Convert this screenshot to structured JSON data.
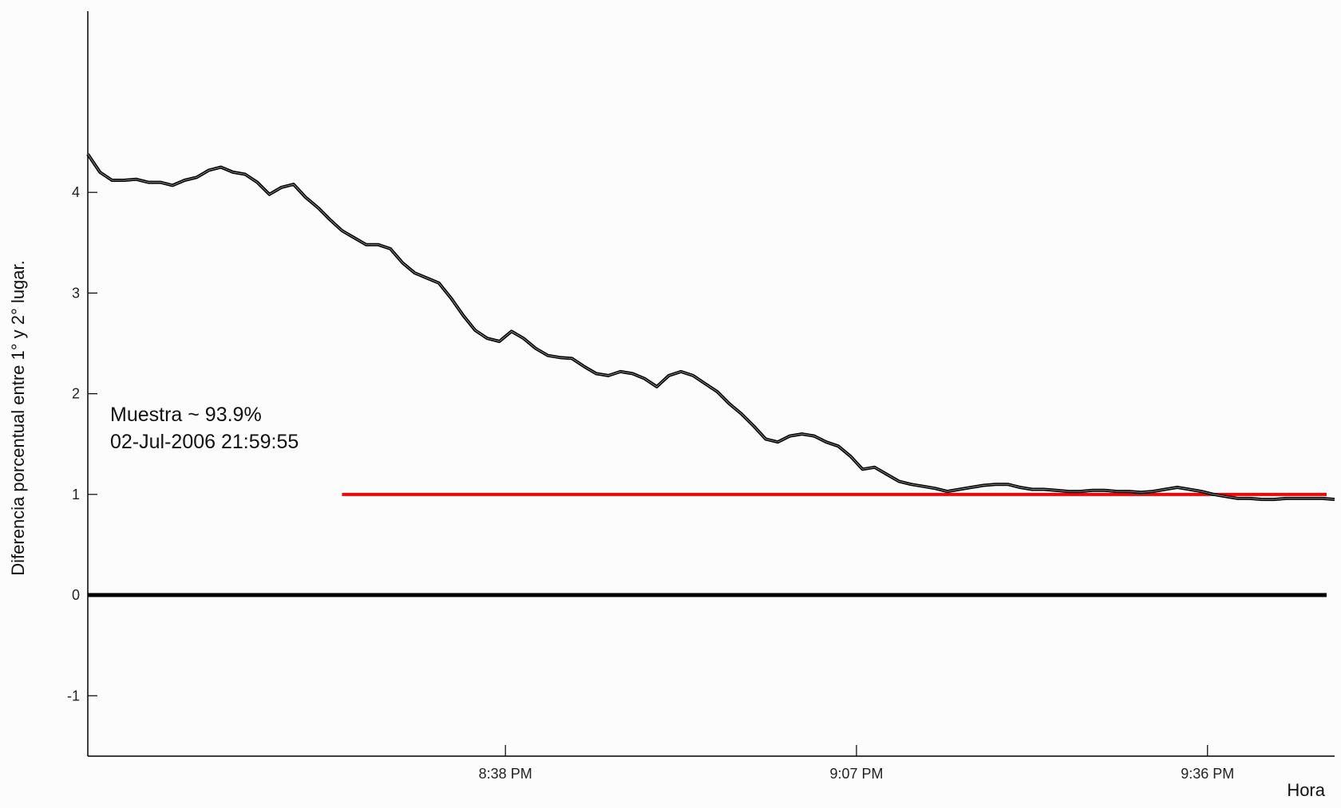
{
  "chart_data": {
    "type": "line",
    "title": "",
    "xlabel": "Hora",
    "ylabel": "Diferencia porcentual entre 1° y 2° lugar.",
    "ylim": [
      -1.6,
      5.8
    ],
    "yticks": [
      -1,
      0,
      1,
      2,
      3,
      4
    ],
    "xlim_minutes": [
      1203.5,
      1306.5
    ],
    "xticks": [
      {
        "minute": 1238,
        "label": "8:38 PM"
      },
      {
        "minute": 1267,
        "label": "9:07 PM"
      },
      {
        "minute": 1296,
        "label": "9:36 PM"
      }
    ],
    "grid": false,
    "legend": "none",
    "colors": {
      "series": "#000000",
      "threshold": "#ff0000",
      "zero": "#000000"
    },
    "series": [
      {
        "x": [
          1203.5,
          1204.5,
          1205.5,
          1206.5,
          1207.5,
          1208.5,
          1209.5,
          1210.5,
          1211.5,
          1212.5,
          1213.5,
          1214.5,
          1215.5,
          1216.5,
          1217.5,
          1218.5,
          1219.5,
          1220.5,
          1221.5,
          1222.5,
          1223.5,
          1224.5,
          1225.5,
          1226.5,
          1227.5,
          1228.5,
          1229.5,
          1230.5,
          1231.5,
          1232.5,
          1233.5,
          1234.5,
          1235.5,
          1236.5,
          1237.5,
          1238.5,
          1239.5,
          1240.5,
          1241.5,
          1242.5,
          1243.5,
          1244.5,
          1245.5,
          1246.5,
          1247.5,
          1248.5,
          1249.5,
          1250.5,
          1251.5,
          1252.5,
          1253.5,
          1254.5,
          1255.5,
          1256.5,
          1257.5,
          1258.5,
          1259.5,
          1260.5,
          1261.5,
          1262.5,
          1263.5,
          1264.5,
          1265.5,
          1266.5,
          1267.5,
          1268.5,
          1269.5,
          1270.5,
          1271.5,
          1272.5,
          1273.5,
          1274.5,
          1275.5,
          1276.5,
          1277.5,
          1278.5,
          1279.5,
          1280.5,
          1281.5,
          1282.5,
          1283.5,
          1284.5,
          1285.5,
          1286.5,
          1287.5,
          1288.5,
          1289.5,
          1290.5,
          1291.5,
          1292.5,
          1293.5,
          1294.5,
          1295.5,
          1296.5,
          1297.5,
          1298.5,
          1299.5,
          1300.5,
          1301.5,
          1302.5,
          1303.5,
          1304.5,
          1305.5,
          1306.5
        ],
        "y": [
          4.38,
          4.2,
          4.12,
          4.12,
          4.13,
          4.1,
          4.1,
          4.07,
          4.12,
          4.15,
          4.22,
          4.25,
          4.2,
          4.18,
          4.1,
          3.98,
          4.05,
          4.08,
          3.95,
          3.85,
          3.73,
          3.62,
          3.55,
          3.48,
          3.48,
          3.44,
          3.3,
          3.2,
          3.15,
          3.1,
          2.95,
          2.78,
          2.63,
          2.55,
          2.52,
          2.62,
          2.55,
          2.45,
          2.38,
          2.36,
          2.35,
          2.27,
          2.2,
          2.18,
          2.22,
          2.2,
          2.15,
          2.07,
          2.18,
          2.22,
          2.18,
          2.1,
          2.02,
          1.9,
          1.8,
          1.68,
          1.55,
          1.52,
          1.58,
          1.6,
          1.58,
          1.52,
          1.48,
          1.38,
          1.25,
          1.27,
          1.2,
          1.13,
          1.1,
          1.08,
          1.06,
          1.03,
          1.05,
          1.07,
          1.09,
          1.1,
          1.1,
          1.07,
          1.05,
          1.05,
          1.04,
          1.03,
          1.03,
          1.04,
          1.04,
          1.03,
          1.03,
          1.02,
          1.03,
          1.05,
          1.07,
          1.05,
          1.03,
          1.0,
          0.98,
          0.96,
          0.96,
          0.95,
          0.95,
          0.96,
          0.96,
          0.96,
          0.96,
          0.95
        ]
      }
    ],
    "threshold": {
      "y": 1,
      "x_start_minute": 1224.5
    },
    "zero_line": {
      "y": 0
    },
    "annotation": {
      "line1": "Muestra ~ 93.9%",
      "line2": "02-Jul-2006 21:59:55"
    }
  }
}
